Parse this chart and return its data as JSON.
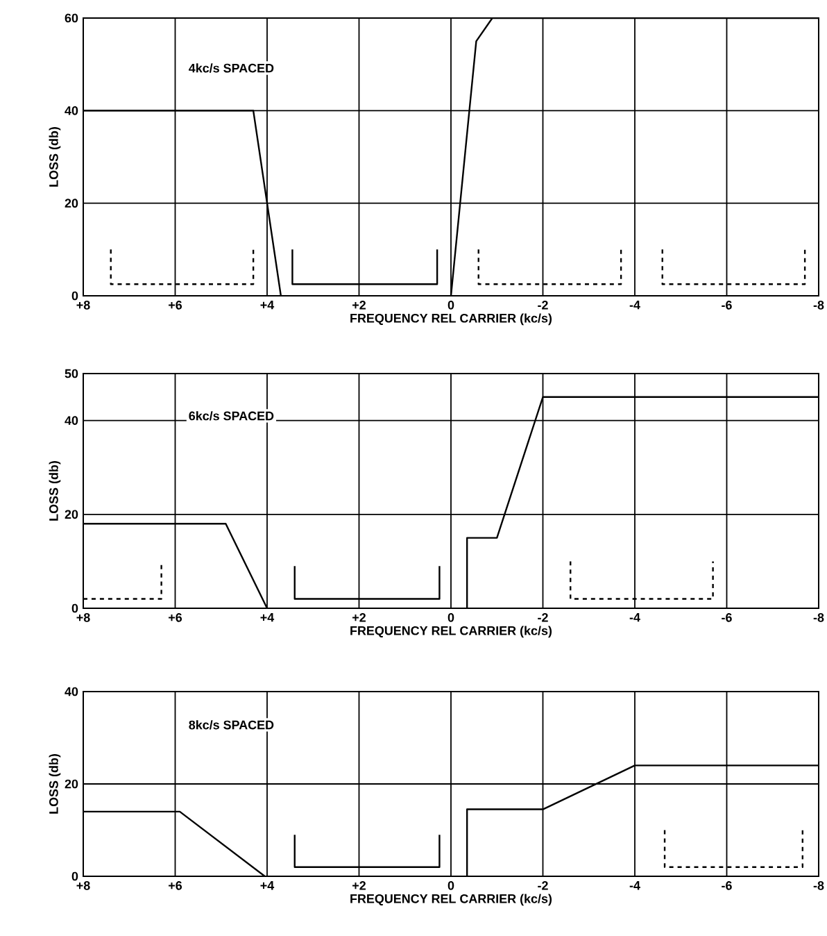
{
  "chart_data": [
    {
      "type": "line",
      "xlabel": "FREQUENCY REL CARRIER (kc/s)",
      "ylabel": "LOSS (db)",
      "annotations": [
        "4kc/s SPACED"
      ],
      "xlim": [
        8,
        -8
      ],
      "ylim": [
        0,
        60
      ],
      "xticks": [
        {
          "value": 8,
          "label": "+8"
        },
        {
          "value": 6,
          "label": "+6"
        },
        {
          "value": 4,
          "label": "+4"
        },
        {
          "value": 2,
          "label": "+2"
        },
        0,
        -2,
        -4,
        -6,
        -8
      ],
      "yticks": [
        0,
        20,
        40,
        60
      ],
      "grid": true,
      "series": [
        {
          "color": "#000000",
          "line_style": "solid",
          "x": [
            8,
            4.3,
            3.7
          ],
          "values": [
            40,
            40,
            0
          ]
        },
        {
          "color": "#000000",
          "line_style": "solid",
          "x": [
            3.45,
            3.45,
            0.3,
            0.3
          ],
          "values": [
            10,
            2.5,
            2.5,
            10
          ]
        },
        {
          "color": "#000000",
          "line_style": "solid",
          "x": [
            0,
            -0.55,
            -0.9,
            -8
          ],
          "values": [
            0,
            55,
            60,
            60
          ]
        },
        {
          "color": "#000000",
          "line_style": "dashed",
          "x": [
            7.4,
            7.4,
            4.3,
            4.3
          ],
          "values": [
            10,
            2.5,
            2.5,
            10
          ]
        },
        {
          "color": "#000000",
          "line_style": "dashed",
          "x": [
            -0.6,
            -0.6,
            -3.7,
            -3.7
          ],
          "values": [
            10,
            2.5,
            2.5,
            10
          ]
        },
        {
          "color": "#000000",
          "line_style": "dashed",
          "x": [
            -4.6,
            -4.6,
            -7.7,
            -7.7
          ],
          "values": [
            10,
            2.5,
            2.5,
            10
          ]
        }
      ]
    },
    {
      "type": "line",
      "xlabel": "FREQUENCY REL CARRIER (kc/s)",
      "ylabel": "LOSS (db)",
      "annotations": [
        "6kc/s SPACED"
      ],
      "xlim": [
        8,
        -8
      ],
      "ylim": [
        0,
        50
      ],
      "xticks": [
        {
          "value": 8,
          "label": "+8"
        },
        {
          "value": 6,
          "label": "+6"
        },
        {
          "value": 4,
          "label": "+4"
        },
        {
          "value": 2,
          "label": "+2"
        },
        0,
        -2,
        -4,
        -6,
        -8
      ],
      "yticks": [
        0,
        20,
        40,
        50
      ],
      "grid": true,
      "series": [
        {
          "color": "#000000",
          "line_style": "solid",
          "x": [
            8,
            4.9,
            4
          ],
          "values": [
            18,
            18,
            0
          ]
        },
        {
          "color": "#000000",
          "line_style": "solid",
          "x": [
            3.4,
            3.4,
            0.25,
            0.25
          ],
          "values": [
            9,
            2,
            2,
            9
          ]
        },
        {
          "color": "#000000",
          "line_style": "solid",
          "x": [
            -0.35,
            -0.35,
            -1,
            -2,
            -8
          ],
          "values": [
            0,
            15,
            15,
            45,
            45
          ]
        },
        {
          "color": "#000000",
          "line_style": "dashed",
          "x": [
            8,
            6.3,
            6.3
          ],
          "values": [
            2,
            2,
            10
          ]
        },
        {
          "color": "#000000",
          "line_style": "dashed",
          "x": [
            -2.6,
            -2.6,
            -5.7,
            -5.7
          ],
          "values": [
            10,
            2,
            2,
            10
          ]
        }
      ]
    },
    {
      "type": "line",
      "xlabel": "FREQUENCY REL CARRIER (kc/s)",
      "ylabel": "LOSS (db)",
      "annotations": [
        "8kc/s SPACED"
      ],
      "xlim": [
        8,
        -8
      ],
      "ylim": [
        0,
        40
      ],
      "xticks": [
        {
          "value": 8,
          "label": "+8"
        },
        {
          "value": 6,
          "label": "+6"
        },
        {
          "value": 4,
          "label": "+4"
        },
        {
          "value": 2,
          "label": "+2"
        },
        0,
        -2,
        -4,
        -6,
        -8
      ],
      "yticks": [
        0,
        20,
        40
      ],
      "grid": true,
      "series": [
        {
          "color": "#000000",
          "line_style": "solid",
          "x": [
            8,
            5.9,
            4.05
          ],
          "values": [
            14,
            14,
            0
          ]
        },
        {
          "color": "#000000",
          "line_style": "solid",
          "x": [
            3.4,
            3.4,
            0.25,
            0.25
          ],
          "values": [
            9,
            2,
            2,
            9
          ]
        },
        {
          "color": "#000000",
          "line_style": "solid",
          "x": [
            -0.35,
            -0.35,
            -2,
            -4,
            -8
          ],
          "values": [
            0,
            14.5,
            14.5,
            24,
            24
          ]
        },
        {
          "color": "#000000",
          "line_style": "dashed",
          "x": [
            -4.65,
            -4.65,
            -7.65,
            -7.65
          ],
          "values": [
            10,
            2,
            2,
            10
          ]
        }
      ]
    }
  ]
}
